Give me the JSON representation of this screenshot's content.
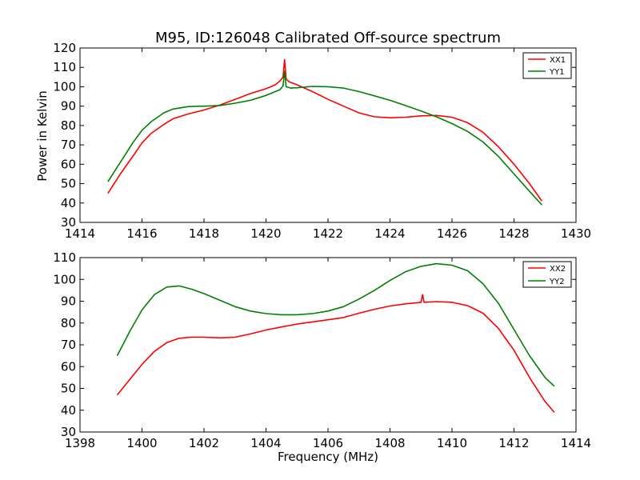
{
  "chart_data": [
    {
      "type": "line",
      "title": "M95, ID:126048 Calibrated Off-source spectrum",
      "xlabel": "",
      "ylabel": "Power in Kelvin",
      "xlim": [
        1414,
        1430
      ],
      "ylim": [
        30,
        120
      ],
      "xticks": [
        1414,
        1416,
        1418,
        1420,
        1422,
        1424,
        1426,
        1428,
        1430
      ],
      "yticks": [
        30,
        40,
        50,
        60,
        70,
        80,
        90,
        100,
        110,
        120
      ],
      "legend": "top-right",
      "grid": false,
      "series": [
        {
          "name": "XX1",
          "color": "#ff0000",
          "x": [
            1414.9,
            1415.3,
            1415.7,
            1416.0,
            1416.3,
            1416.7,
            1417.0,
            1417.5,
            1418.0,
            1418.5,
            1419.0,
            1419.5,
            1420.0,
            1420.3,
            1420.45,
            1420.55,
            1420.6,
            1420.65,
            1420.75,
            1421.0,
            1421.5,
            1422.0,
            1422.5,
            1423.0,
            1423.5,
            1424.0,
            1424.5,
            1425.0,
            1425.5,
            1426.0,
            1426.5,
            1427.0,
            1427.5,
            1428.0,
            1428.5,
            1428.9
          ],
          "y": [
            45,
            55,
            64,
            71,
            76,
            80.5,
            83.5,
            86,
            88,
            90.5,
            93.5,
            96.5,
            99,
            101,
            103,
            105,
            114,
            104,
            102.5,
            101,
            97.5,
            93.5,
            90,
            86.5,
            84.5,
            84,
            84.3,
            85,
            85.2,
            84.3,
            81.5,
            76.5,
            69,
            60,
            50,
            41
          ]
        },
        {
          "name": "YY1",
          "color": "#008000",
          "x": [
            1414.9,
            1415.3,
            1415.7,
            1416.0,
            1416.3,
            1416.7,
            1417.0,
            1417.5,
            1418.0,
            1418.5,
            1419.0,
            1419.5,
            1420.0,
            1420.3,
            1420.45,
            1420.55,
            1420.6,
            1420.65,
            1420.8,
            1421.0,
            1421.5,
            1422.0,
            1422.5,
            1423.0,
            1423.5,
            1424.0,
            1424.5,
            1425.0,
            1425.5,
            1426.0,
            1426.5,
            1427.0,
            1427.5,
            1428.0,
            1428.5,
            1428.9
          ],
          "y": [
            51,
            61,
            71,
            77.5,
            82,
            86.5,
            88.5,
            89.8,
            90,
            90.3,
            91.5,
            93,
            95.5,
            97.5,
            98.5,
            100.5,
            108,
            100,
            99.3,
            99.5,
            100.2,
            100,
            99.3,
            97.5,
            95.3,
            93,
            90.3,
            87.5,
            84.5,
            81,
            77,
            71.5,
            64,
            55,
            46,
            39
          ]
        }
      ]
    },
    {
      "type": "line",
      "title": "",
      "xlabel": "Frequency (MHz)",
      "ylabel": "",
      "xlim": [
        1398,
        1414
      ],
      "ylim": [
        30,
        110
      ],
      "xticks": [
        1398,
        1400,
        1402,
        1404,
        1406,
        1408,
        1410,
        1412,
        1414
      ],
      "yticks": [
        30,
        40,
        50,
        60,
        70,
        80,
        90,
        100,
        110
      ],
      "legend": "top-right",
      "grid": false,
      "series": [
        {
          "name": "XX2",
          "color": "#ff0000",
          "x": [
            1399.2,
            1399.6,
            1400.0,
            1400.4,
            1400.8,
            1401.2,
            1401.6,
            1402.0,
            1402.5,
            1403.0,
            1403.5,
            1404.0,
            1404.5,
            1405.0,
            1405.5,
            1406.0,
            1406.5,
            1407.0,
            1407.5,
            1408.0,
            1408.5,
            1409.0,
            1409.05,
            1409.1,
            1409.5,
            1410.0,
            1410.5,
            1411.0,
            1411.5,
            1412.0,
            1412.5,
            1413.0,
            1413.3
          ],
          "y": [
            47,
            54,
            61,
            67,
            71,
            73,
            73.5,
            73.5,
            73.2,
            73.5,
            75,
            76.8,
            78.2,
            79.5,
            80.5,
            81.5,
            82.5,
            84.5,
            86.3,
            87.8,
            88.8,
            89.5,
            93,
            89.5,
            89.8,
            89.5,
            88,
            84.5,
            77.5,
            67.5,
            55,
            44,
            39
          ]
        },
        {
          "name": "YY2",
          "color": "#008000",
          "x": [
            1399.2,
            1399.6,
            1400.0,
            1400.4,
            1400.8,
            1401.2,
            1401.6,
            1402.0,
            1402.5,
            1403.0,
            1403.5,
            1404.0,
            1404.5,
            1405.0,
            1405.5,
            1406.0,
            1406.5,
            1407.0,
            1407.5,
            1408.0,
            1408.5,
            1409.0,
            1409.5,
            1410.0,
            1410.5,
            1411.0,
            1411.5,
            1412.0,
            1412.5,
            1413.0,
            1413.3
          ],
          "y": [
            65,
            76,
            86,
            93,
            96.5,
            97,
            95.5,
            93.5,
            90.5,
            87.5,
            85.5,
            84.3,
            83.8,
            83.8,
            84.3,
            85.5,
            87.5,
            91,
            95,
            99.5,
            103.5,
            106,
            107.2,
            106.5,
            104,
            98,
            89,
            77,
            65,
            55,
            51
          ]
        }
      ]
    }
  ]
}
